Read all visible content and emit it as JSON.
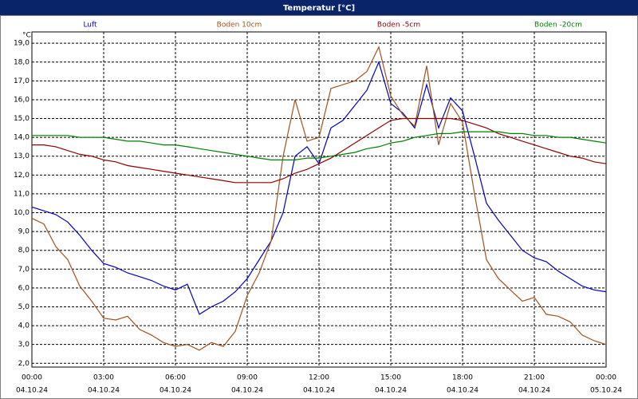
{
  "chart_data": {
    "type": "line",
    "title": "Temperatur [°C]",
    "y_unit": "°C",
    "x": [
      0,
      0.5,
      1,
      1.5,
      2,
      2.5,
      3,
      3.5,
      4,
      4.5,
      5,
      5.5,
      6,
      6.5,
      7,
      7.5,
      8,
      8.5,
      9,
      9.5,
      10,
      10.5,
      11,
      11.5,
      12,
      12.5,
      13,
      13.5,
      14,
      14.5,
      15,
      15.5,
      16,
      16.5,
      17,
      17.5,
      18,
      18.5,
      19,
      19.5,
      20,
      20.5,
      21,
      21.5,
      22,
      22.5,
      23,
      23.5,
      24
    ],
    "series": [
      {
        "name": "Luft",
        "color": "#0000c0",
        "values": [
          10.3,
          10.1,
          9.9,
          9.5,
          8.8,
          8.0,
          7.3,
          7.1,
          6.8,
          6.6,
          6.4,
          6.1,
          5.9,
          6.2,
          4.6,
          5.0,
          5.3,
          5.8,
          6.5,
          7.5,
          8.5,
          10.0,
          13.0,
          13.5,
          12.6,
          14.5,
          14.9,
          15.7,
          16.5,
          18.0,
          15.8,
          15.3,
          14.5,
          16.8,
          14.5,
          16.1,
          15.4,
          13.0,
          10.5,
          9.6,
          8.8,
          8.0,
          7.6,
          7.4,
          6.9,
          6.5,
          6.1,
          5.9,
          5.8
        ]
      },
      {
        "name": "Boden 10cm",
        "color": "#a0521e",
        "values": [
          9.7,
          9.4,
          8.2,
          7.5,
          6.1,
          5.3,
          4.4,
          4.3,
          4.5,
          3.8,
          3.5,
          3.1,
          2.9,
          3.0,
          2.7,
          3.1,
          2.9,
          3.7,
          5.6,
          6.8,
          8.5,
          13.0,
          16.0,
          13.8,
          14.0,
          16.6,
          16.8,
          17.0,
          17.5,
          18.8,
          16.2,
          15.2,
          14.6,
          17.8,
          13.6,
          15.8,
          14.8,
          11.0,
          7.5,
          6.5,
          5.9,
          5.3,
          5.5,
          4.6,
          4.5,
          4.2,
          3.5,
          3.2,
          3.0
        ]
      },
      {
        "name": "Boden -5cm",
        "color": "#900000",
        "values": [
          13.6,
          13.6,
          13.5,
          13.3,
          13.1,
          13.0,
          12.8,
          12.7,
          12.5,
          12.4,
          12.3,
          12.2,
          12.1,
          12.0,
          11.9,
          11.8,
          11.7,
          11.6,
          11.6,
          11.6,
          11.6,
          11.8,
          12.1,
          12.3,
          12.6,
          12.9,
          13.3,
          13.7,
          14.1,
          14.5,
          14.9,
          15.0,
          15.0,
          15.0,
          15.0,
          15.0,
          14.9,
          14.7,
          14.5,
          14.2,
          14.0,
          13.8,
          13.6,
          13.4,
          13.2,
          13.0,
          12.9,
          12.7,
          12.6
        ]
      },
      {
        "name": "Boden -20cm",
        "color": "#008000",
        "values": [
          14.1,
          14.1,
          14.1,
          14.1,
          14.0,
          14.0,
          14.0,
          13.9,
          13.8,
          13.8,
          13.7,
          13.6,
          13.6,
          13.5,
          13.4,
          13.3,
          13.2,
          13.1,
          13.0,
          12.9,
          12.8,
          12.8,
          12.8,
          12.9,
          12.9,
          13.0,
          13.1,
          13.2,
          13.4,
          13.5,
          13.7,
          13.8,
          14.0,
          14.1,
          14.2,
          14.2,
          14.3,
          14.3,
          14.3,
          14.3,
          14.2,
          14.2,
          14.1,
          14.1,
          14.0,
          14.0,
          13.9,
          13.8,
          13.7
        ]
      }
    ],
    "xlim": [
      0,
      24
    ],
    "xticks": [
      {
        "value": 0,
        "label": "00:00"
      },
      {
        "value": 3,
        "label": "03:00"
      },
      {
        "value": 6,
        "label": "06:00"
      },
      {
        "value": 9,
        "label": "09:00"
      },
      {
        "value": 12,
        "label": "12:00"
      },
      {
        "value": 15,
        "label": "15:00"
      },
      {
        "value": 18,
        "label": "18:00"
      },
      {
        "value": 21,
        "label": "21:00"
      },
      {
        "value": 24,
        "label": "00:00"
      }
    ],
    "xtick_dates": [
      "04.10.24",
      "04.10.24",
      "04.10.24",
      "04.10.24",
      "04.10.24",
      "04.10.24",
      "04.10.24",
      "04.10.24",
      "05.10.24"
    ],
    "ylim": [
      1.8,
      19.6
    ],
    "yticks": [
      {
        "value": 2,
        "label": "2,0"
      },
      {
        "value": 3,
        "label": "3,0"
      },
      {
        "value": 4,
        "label": "4,0"
      },
      {
        "value": 5,
        "label": "5,0"
      },
      {
        "value": 6,
        "label": "6,0"
      },
      {
        "value": 7,
        "label": "7,0"
      },
      {
        "value": 8,
        "label": "8,0"
      },
      {
        "value": 9,
        "label": "9,0"
      },
      {
        "value": 10,
        "label": "10,0"
      },
      {
        "value": 11,
        "label": "11,0"
      },
      {
        "value": 12,
        "label": "12,0"
      },
      {
        "value": 13,
        "label": "13,0"
      },
      {
        "value": 14,
        "label": "14,0"
      },
      {
        "value": 15,
        "label": "15,0"
      },
      {
        "value": 16,
        "label": "16,0"
      },
      {
        "value": 17,
        "label": "17,0"
      },
      {
        "value": 18,
        "label": "18,0"
      },
      {
        "value": 19,
        "label": "19,0"
      }
    ],
    "grid": true
  }
}
